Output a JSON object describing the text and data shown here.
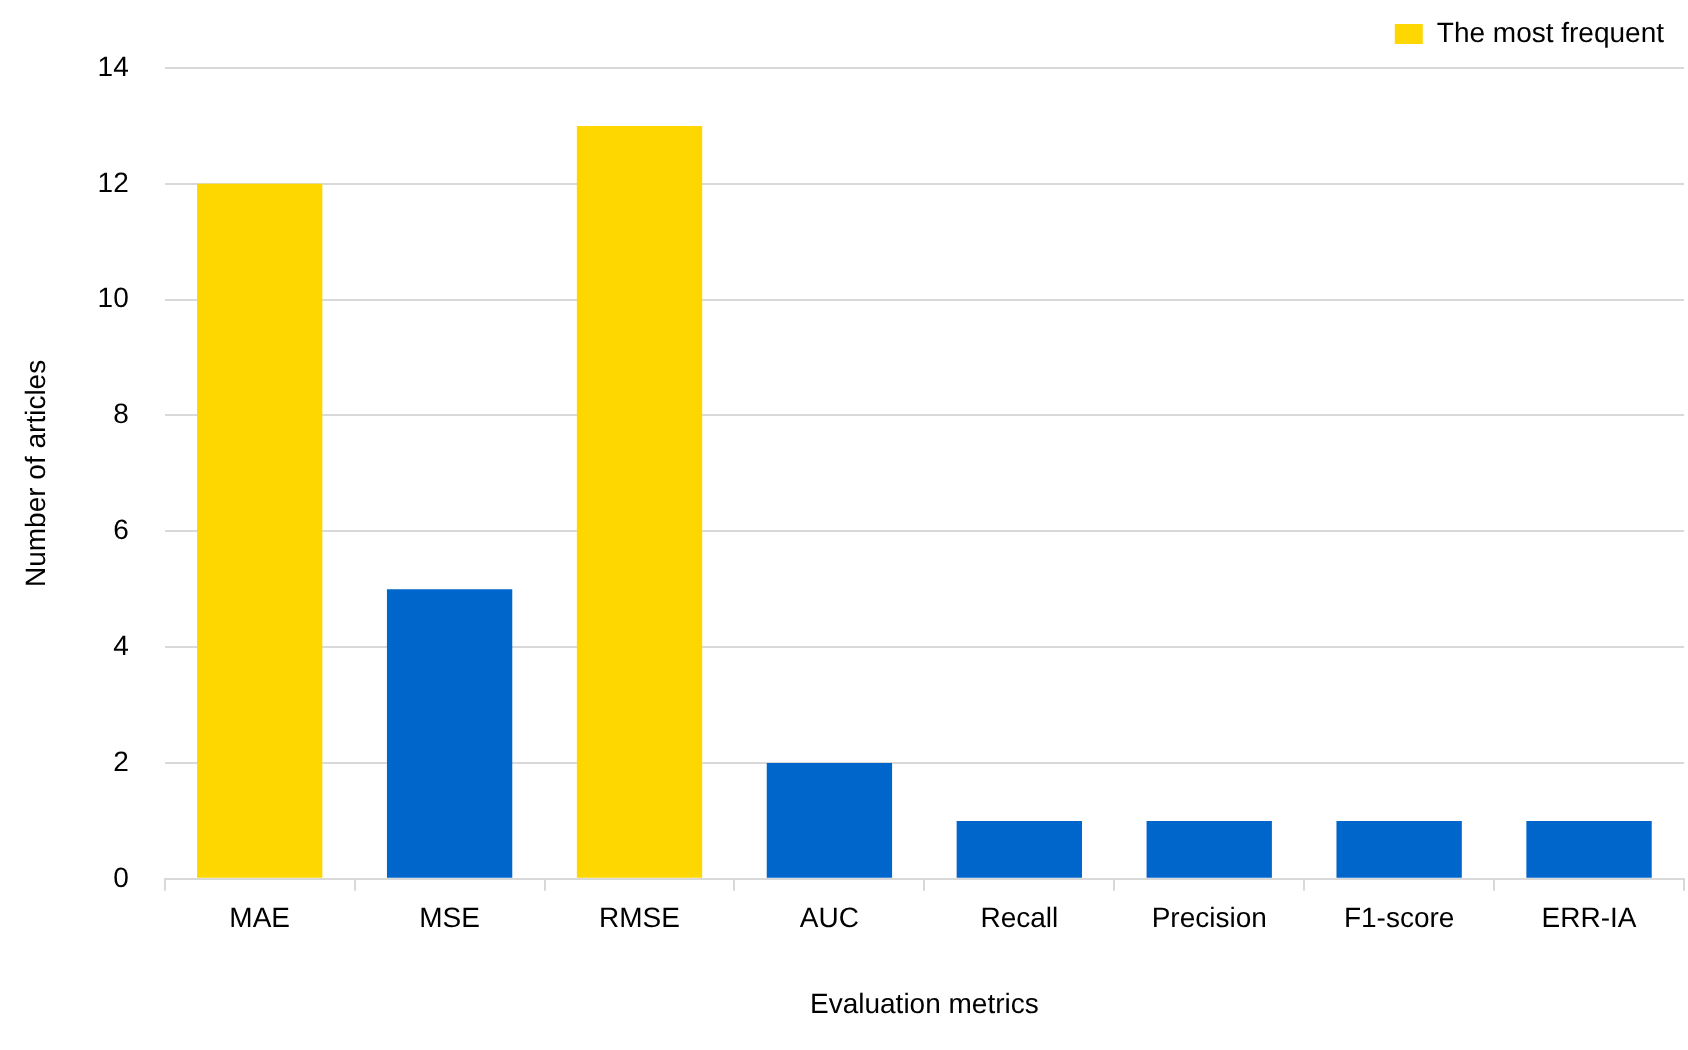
{
  "chart_data": {
    "type": "bar",
    "xlabel": "Evaluation metrics",
    "ylabel": "Number of articles",
    "categories": [
      "MAE",
      "MSE",
      "RMSE",
      "AUC",
      "Recall",
      "Precision",
      "F1-score",
      "ERR-IA"
    ],
    "series": [
      {
        "name": "The most frequent",
        "color": "#ffd700",
        "values": [
          12,
          null,
          13,
          null,
          null,
          null,
          null,
          null
        ]
      },
      {
        "color": "#0066cc",
        "values": [
          null,
          5,
          null,
          2,
          1,
          1,
          1,
          1
        ]
      }
    ],
    "ylim": [
      0,
      14
    ],
    "yticks": [
      0,
      2,
      4,
      6,
      8,
      10,
      12,
      14
    ],
    "grid": "y",
    "legend": "top right"
  }
}
